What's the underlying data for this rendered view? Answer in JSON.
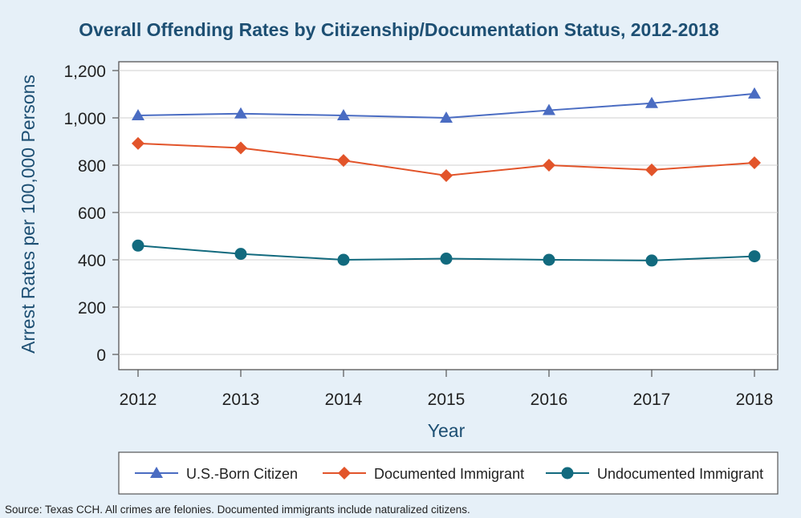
{
  "chart_data": {
    "type": "line",
    "title": "Overall Offending Rates by Citizenship/Documentation Status, 2012-2018",
    "xlabel": "Year",
    "ylabel": "Arrest Rates per 100,000 Persons",
    "categories": [
      "2012",
      "2013",
      "2014",
      "2015",
      "2016",
      "2017",
      "2018"
    ],
    "y_ticks": [
      "0",
      "200",
      "400",
      "600",
      "800",
      "1,000",
      "1,200"
    ],
    "ylim": [
      0,
      1200
    ],
    "grid": "horizontal",
    "legend_position": "bottom",
    "series": [
      {
        "name": "U.S.-Born Citizen",
        "marker": "triangle",
        "color": "#4a6cc2",
        "values": [
          1010,
          1018,
          1010,
          1000,
          1032,
          1062,
          1102
        ]
      },
      {
        "name": "Documented Immigrant",
        "marker": "diamond",
        "color": "#e2542a",
        "values": [
          892,
          873,
          820,
          756,
          800,
          780,
          810
        ]
      },
      {
        "name": "Undocumented Immigrant",
        "marker": "circle",
        "color": "#126a7e",
        "values": [
          460,
          425,
          400,
          405,
          400,
          397,
          415
        ]
      }
    ],
    "source_note": "Source: Texas CCH. All crimes are felonies. Documented immigrants include naturalized citizens."
  }
}
